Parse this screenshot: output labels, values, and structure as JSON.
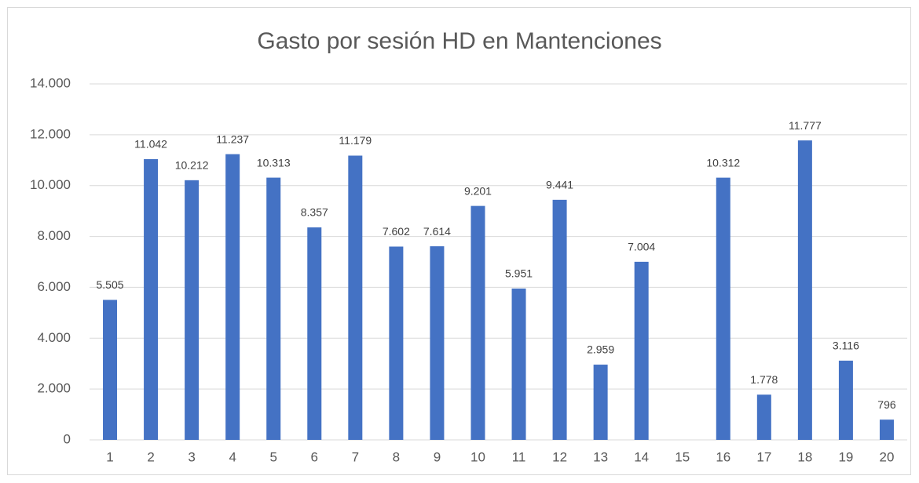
{
  "chart_data": {
    "type": "bar",
    "title": "Gasto por sesión HD en Mantenciones",
    "categories": [
      "1",
      "2",
      "3",
      "4",
      "5",
      "6",
      "7",
      "8",
      "9",
      "10",
      "11",
      "12",
      "13",
      "14",
      "15",
      "16",
      "17",
      "18",
      "19",
      "20"
    ],
    "values": [
      5505,
      11042,
      10212,
      11237,
      10313,
      8357,
      11179,
      7602,
      7614,
      9201,
      5951,
      9441,
      2959,
      7004,
      null,
      10312,
      1778,
      11777,
      3116,
      796
    ],
    "value_labels": [
      "5.505",
      "11.042",
      "10.212",
      "11.237",
      "10.313",
      "8.357",
      "11.179",
      "7.602",
      "7.614",
      "9.201",
      "5.951",
      "9.441",
      "2.959",
      "7.004",
      null,
      "10.312",
      "1.778",
      "11.777",
      "3.116",
      "796"
    ],
    "color": "#4472c4",
    "ylim": [
      0,
      14000
    ],
    "yticks": [
      0,
      {
        "value": 2000,
        "label": "2.000"
      },
      {
        "value": 4000,
        "label": "4.000"
      },
      {
        "value": 6000,
        "label": "6.000"
      },
      {
        "value": 8000,
        "label": "8.000"
      },
      {
        "value": 10000,
        "label": "10.000"
      },
      {
        "value": 12000,
        "label": "12.000"
      },
      {
        "value": 14000,
        "label": "14.000"
      }
    ],
    "grid": true
  }
}
